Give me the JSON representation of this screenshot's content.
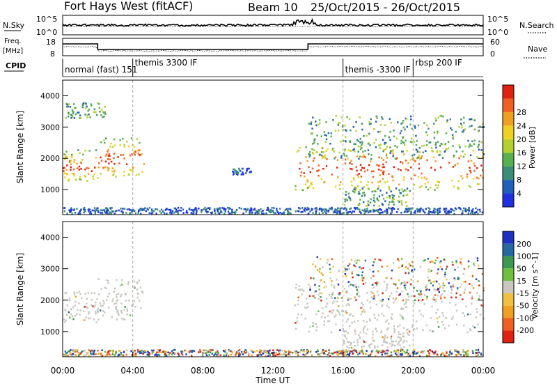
{
  "header": {
    "station": "Fort Hays West (fitACF)",
    "beam": "Beam 10",
    "dates": "25/Oct/2015 - 26/Oct/2015"
  },
  "strip": {
    "sky_label": "N.Sky",
    "sky_ticks": [
      "10^5",
      "10^0"
    ],
    "search_label": "N.Search",
    "search_ticks": [
      "10^5",
      "10^0"
    ],
    "freq_label": "Freq.",
    "freq_unit": "[MHz]",
    "freq_ticks": [
      "18",
      "8"
    ],
    "nave_label": "Nave",
    "nave_ticks": [
      "60",
      "0"
    ],
    "cpid_label": "CPID",
    "modes": [
      {
        "label": "normal (fast) 151",
        "start_hr": 0
      },
      {
        "label": "themis 3300 IF",
        "start_hr": 4
      },
      {
        "label": "themis -3300 IF",
        "start_hr": 16
      },
      {
        "label": "rbsp 200 IF",
        "start_hr": 20
      }
    ],
    "freq_steps": [
      {
        "from_hr": 0,
        "to_hr": 2,
        "level": "high"
      },
      {
        "from_hr": 2,
        "to_hr": 14,
        "level": "low"
      },
      {
        "from_hr": 14,
        "to_hr": 24,
        "level": "high"
      }
    ]
  },
  "chart_data": [
    {
      "type": "heatmap",
      "name": "power",
      "ylabel": "Slant Range [km]",
      "xlim": [
        0,
        24
      ],
      "ylim": [
        200,
        4500
      ],
      "yticks": [
        "1000",
        "2000",
        "3000",
        "4000"
      ],
      "colorbar": {
        "label": "Power [dB]",
        "ticks": [
          "4",
          "8",
          "12",
          "16",
          "20",
          "24",
          "28"
        ],
        "colors": [
          "#2030e0",
          "#2060b8",
          "#3c8c78",
          "#58b050",
          "#b4d030",
          "#f0d020",
          "#f0a020",
          "#f06020",
          "#e02010"
        ]
      },
      "regions": [
        {
          "t0": 0.0,
          "t1": 2.0,
          "r0": 1300,
          "r1": 2300,
          "level": "high"
        },
        {
          "t0": 0.0,
          "t1": 2.4,
          "r0": 3300,
          "r1": 3800,
          "level": "medium"
        },
        {
          "t0": 2.0,
          "t1": 4.6,
          "r0": 1400,
          "r1": 2700,
          "level": "high"
        },
        {
          "t0": 0.0,
          "t1": 24.0,
          "r0": 250,
          "r1": 450,
          "level": "low"
        },
        {
          "t0": 9.6,
          "t1": 10.8,
          "r0": 1500,
          "r1": 1700,
          "level": "low"
        },
        {
          "t0": 13.2,
          "t1": 24.0,
          "r0": 1000,
          "r1": 2600,
          "level": "high"
        },
        {
          "t0": 14.0,
          "t1": 24.0,
          "r0": 2000,
          "r1": 3400,
          "level": "medium"
        },
        {
          "t0": 16.0,
          "t1": 19.8,
          "r0": 500,
          "r1": 1100,
          "level": "medium"
        }
      ]
    },
    {
      "type": "heatmap",
      "name": "velocity",
      "ylabel": "Slant Range [km]",
      "xlabel": "Time UT",
      "xlim": [
        0,
        24
      ],
      "ylim": [
        200,
        4500
      ],
      "xticks": [
        "00:00",
        "04:00",
        "08:00",
        "12:00",
        "16:00",
        "20:00",
        "00:00"
      ],
      "yticks": [
        "1000",
        "2000",
        "3000",
        "4000"
      ],
      "colorbar": {
        "label": "Velocity [m s^-1]",
        "ticks": [
          "200",
          "100",
          "50",
          "15",
          "-15",
          "-50",
          "-100",
          "-200"
        ],
        "colors": [
          "#2030c0",
          "#2868a0",
          "#3c9850",
          "#70c040",
          "#c8c8c0",
          "#f0c040",
          "#f0a020",
          "#f06020",
          "#e02010"
        ]
      },
      "regions": [
        {
          "t0": 0.0,
          "t1": 2.0,
          "r0": 1300,
          "r1": 2300,
          "level": "ground"
        },
        {
          "t0": 2.0,
          "t1": 4.6,
          "r0": 1400,
          "r1": 2700,
          "level": "ground"
        },
        {
          "t0": 0.0,
          "t1": 24.0,
          "r0": 250,
          "r1": 450,
          "level": "mixed"
        },
        {
          "t0": 13.2,
          "t1": 24.0,
          "r0": 1000,
          "r1": 2600,
          "level": "ground"
        },
        {
          "t0": 16.0,
          "t1": 19.8,
          "r0": 500,
          "r1": 1100,
          "level": "ground"
        },
        {
          "t0": 14.0,
          "t1": 24.0,
          "r0": 2000,
          "r1": 3400,
          "level": "mixed"
        }
      ]
    }
  ]
}
